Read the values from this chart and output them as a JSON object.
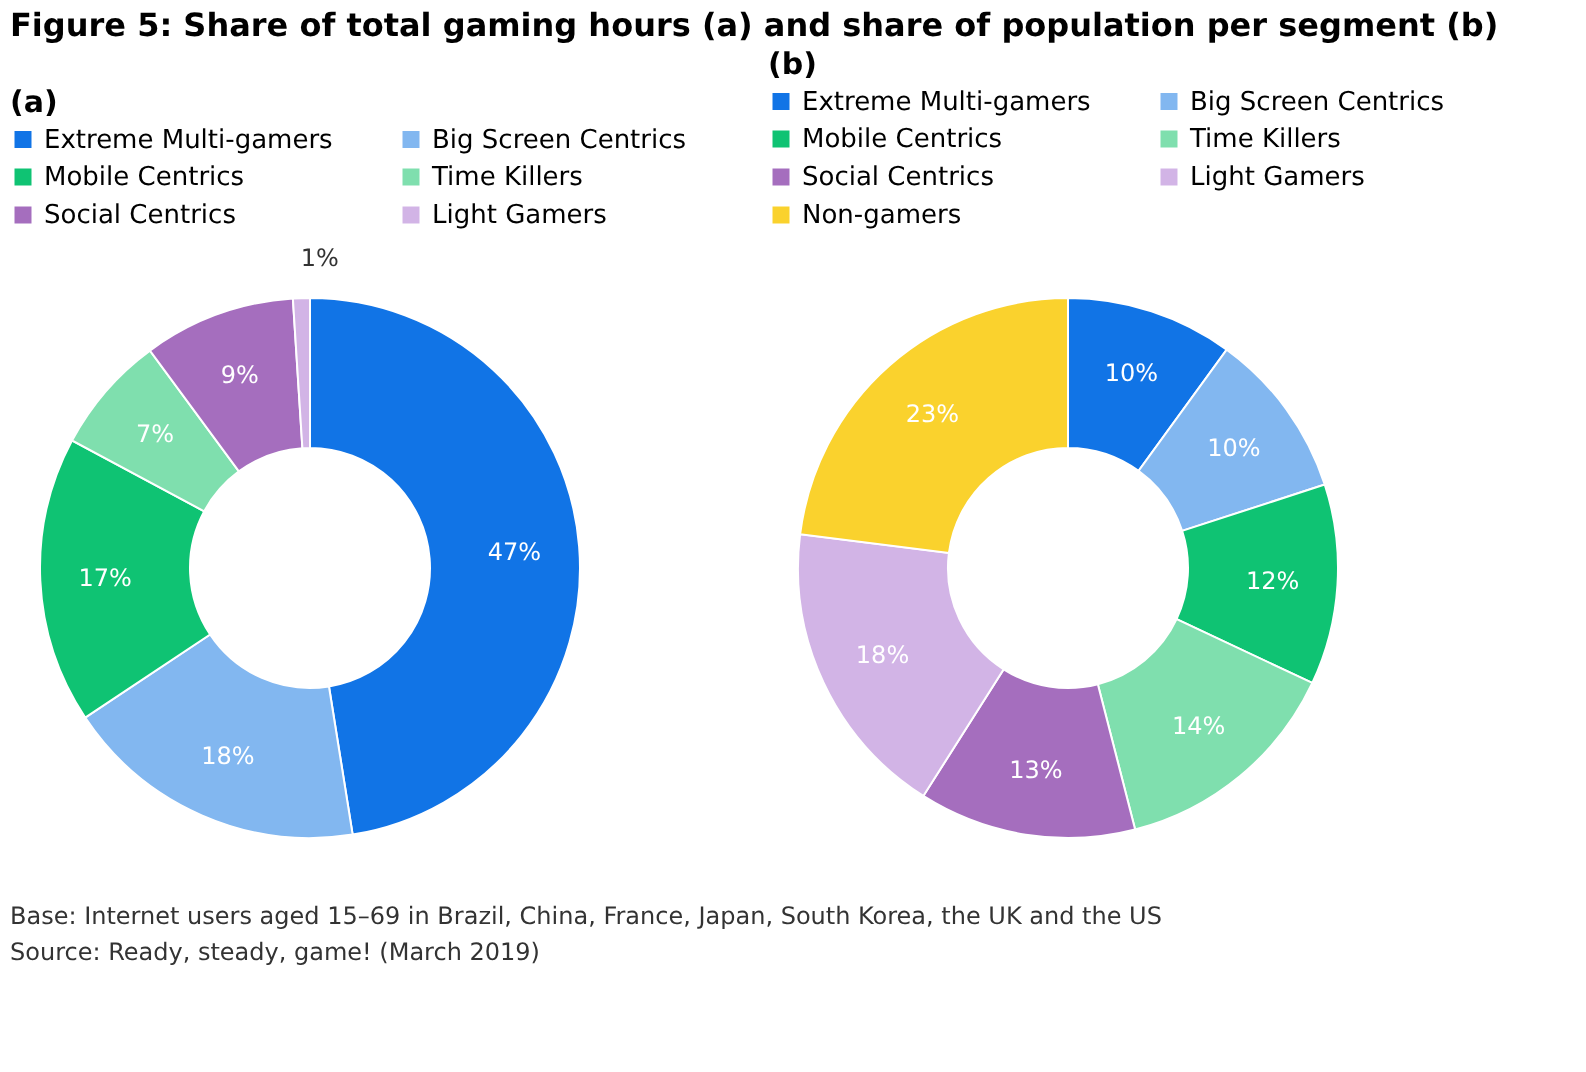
{
  "chart_data": [
    {
      "type": "donut",
      "title": "Figure 5: Share of total gaming hours (a) and share of population per segment (b)",
      "subtitle": "(a)",
      "legend": "top",
      "categories": [
        "Extreme Multi-gamers",
        "Big Screen Centrics",
        "Mobile Centrics",
        "Time Killers",
        "Social Centrics",
        "Light Gamers"
      ],
      "values": [
        47,
        18,
        17,
        7,
        9,
        1
      ],
      "value_labels": [
        "47%",
        "18%",
        "17%",
        "7%",
        "9%",
        "1%"
      ],
      "colors": [
        "#1174e6",
        "#82b7f0",
        "#0fc373",
        "#7fdfae",
        "#a56ebe",
        "#d2b4e6"
      ]
    },
    {
      "type": "donut",
      "subtitle": "(b)",
      "legend": "top",
      "categories": [
        "Extreme Multi-gamers",
        "Big Screen Centrics",
        "Mobile Centrics",
        "Time Killers",
        "Social Centrics",
        "Light Gamers",
        "Non-gamers"
      ],
      "values": [
        10,
        10,
        12,
        14,
        13,
        18,
        23
      ],
      "value_labels": [
        "10%",
        "10%",
        "12%",
        "14%",
        "13%",
        "18%",
        "23%"
      ],
      "colors": [
        "#1174e6",
        "#82b7f0",
        "#0fc373",
        "#7fdfae",
        "#a56ebe",
        "#d2b4e6",
        "#fad22d"
      ],
      "annotations": [
        "Base: Internet users aged 15–69 in Brazil, China, France, Japan, South Korea, the UK and the US",
        "Source: Ready, steady, game! (March 2019)"
      ]
    }
  ]
}
